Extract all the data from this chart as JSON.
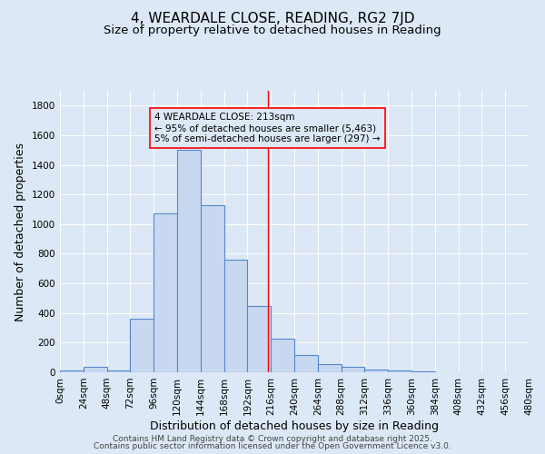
{
  "title": "4, WEARDALE CLOSE, READING, RG2 7JD",
  "subtitle": "Size of property relative to detached houses in Reading",
  "xlabel": "Distribution of detached houses by size in Reading",
  "ylabel": "Number of detached properties",
  "bar_color": "#c8d8f0",
  "bar_edge_color": "#5588cc",
  "background_color": "#dce8f5",
  "bin_width": 24,
  "bin_starts": [
    0,
    24,
    48,
    72,
    96,
    120,
    144,
    168,
    192,
    216,
    240,
    264,
    288,
    312,
    336,
    360,
    384,
    408,
    432,
    456
  ],
  "bar_heights": [
    10,
    35,
    10,
    360,
    1070,
    1500,
    1130,
    760,
    445,
    225,
    115,
    55,
    35,
    18,
    12,
    5,
    2,
    1,
    0,
    0
  ],
  "red_line_x": 213,
  "annotation_line1": "4 WEARDALE CLOSE: 213sqm",
  "annotation_line2": "← 95% of detached houses are smaller (5,463)",
  "annotation_line3": "5% of semi-detached houses are larger (297) →",
  "ylim": [
    0,
    1900
  ],
  "xlim": [
    0,
    480
  ],
  "yticks": [
    0,
    200,
    400,
    600,
    800,
    1000,
    1200,
    1400,
    1600,
    1800
  ],
  "xtick_labels": [
    "0sqm",
    "24sqm",
    "48sqm",
    "72sqm",
    "96sqm",
    "120sqm",
    "144sqm",
    "168sqm",
    "192sqm",
    "216sqm",
    "240sqm",
    "264sqm",
    "288sqm",
    "312sqm",
    "336sqm",
    "360sqm",
    "384sqm",
    "408sqm",
    "432sqm",
    "456sqm",
    "480sqm"
  ],
  "footer_line1": "Contains HM Land Registry data © Crown copyright and database right 2025.",
  "footer_line2": "Contains public sector information licensed under the Open Government Licence v3.0.",
  "title_fontsize": 11,
  "subtitle_fontsize": 9.5,
  "label_fontsize": 9,
  "tick_fontsize": 7.5,
  "annotation_fontsize": 7.5,
  "footer_fontsize": 6.5
}
